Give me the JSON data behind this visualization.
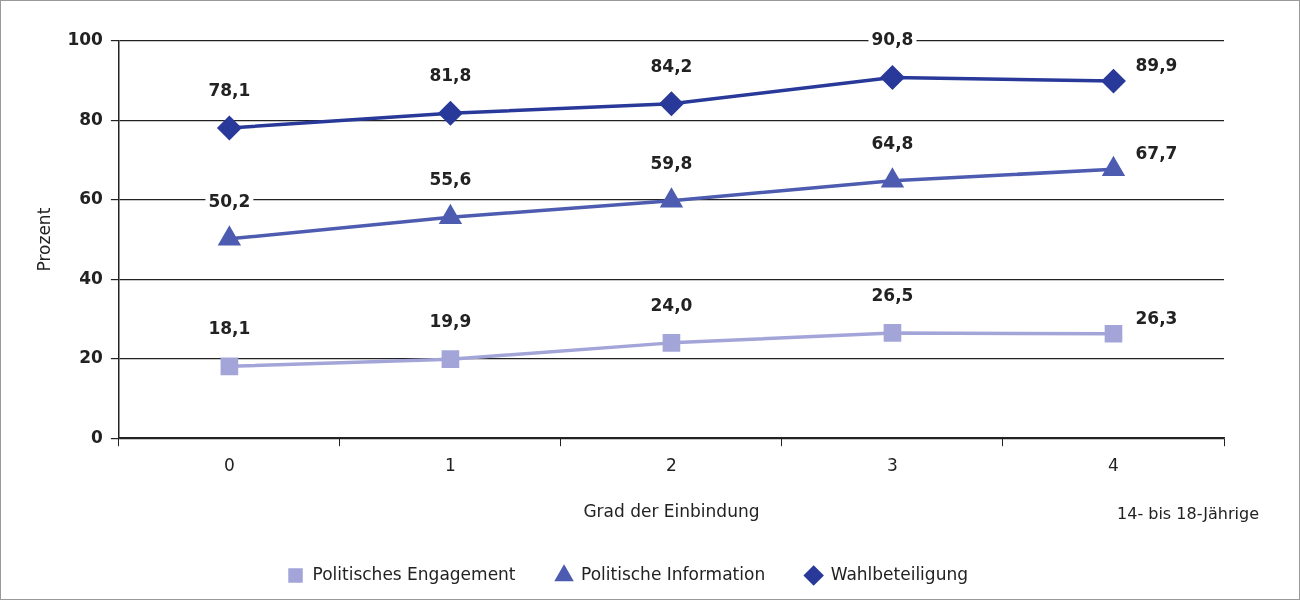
{
  "chart_data": {
    "type": "line",
    "ylabel": "Prozent",
    "xlabel": "Grad der Einbindung",
    "annotations": [
      "14- bis 18-Jährige"
    ],
    "categories": [
      "0",
      "1",
      "2",
      "3",
      "4"
    ],
    "ylim": [
      0,
      100
    ],
    "yticks": [
      0,
      20,
      40,
      60,
      80,
      100
    ],
    "grid": "y",
    "legend": "bottom",
    "series": [
      {
        "name": "Politisches Engagement",
        "color": "#a3a5d9",
        "marker": "square",
        "values": [
          18.1,
          19.9,
          24.0,
          26.5,
          26.3
        ],
        "value_labels": [
          "18,1",
          "19,9",
          "24,0",
          "26,5",
          "26,3"
        ]
      },
      {
        "name": "Politische Information",
        "color": "#4d5cb0",
        "marker": "triangle",
        "values": [
          50.2,
          55.6,
          59.8,
          64.8,
          67.7
        ],
        "value_labels": [
          "50,2",
          "55,6",
          "59,8",
          "64,8",
          "67,7"
        ]
      },
      {
        "name": "Wahlbeteiligung",
        "color": "#28399a",
        "marker": "diamond",
        "values": [
          78.1,
          81.8,
          84.2,
          90.8,
          89.9
        ],
        "value_labels": [
          "78,1",
          "81,8",
          "84,2",
          "90,8",
          "89,9"
        ]
      }
    ]
  }
}
